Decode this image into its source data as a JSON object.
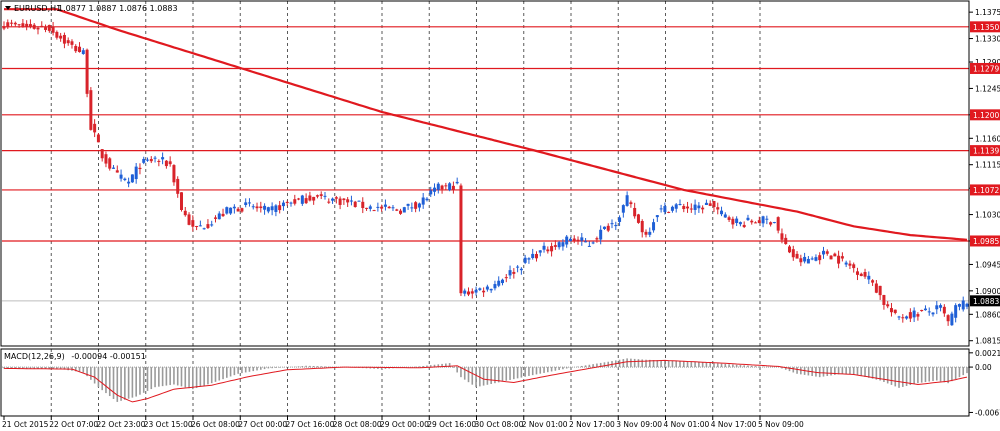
{
  "header": {
    "symbol_label": "EURUSD,H1",
    "ohlc_text": "1.0877 1.0887 1.0876 1.0883"
  },
  "colors": {
    "bull": "#1f5fd6",
    "bear": "#d8232a",
    "ma": "#e0191f",
    "level_line": "#e0191f",
    "macd_hist": "#9a9a9a",
    "macd_signal": "#e0191f",
    "grid": "#5a5a5a",
    "current_price_box": "#000000"
  },
  "chart_data": [
    {
      "type": "candlestick",
      "title": "EURUSD,H1",
      "ohlc_label": "1.0877 1.0887 1.0876 1.0883",
      "y_axis_ticks": [
        "1.1375",
        "1.1330",
        "1.1290",
        "1.1245",
        "1.1200",
        "1.1160",
        "1.1115",
        "1.1075",
        "1.1030",
        "1.0985",
        "1.0945",
        "1.0900",
        "1.0860",
        "1.0815"
      ],
      "ylim": [
        1.0806,
        1.1394
      ],
      "x_axis_labels": [
        "21 Oct 2015",
        "22 Oct 07:00",
        "22 Oct 23:00",
        "23 Oct 15:00",
        "26 Oct 08:00",
        "27 Oct 00:00",
        "27 Oct 16:00",
        "28 Oct 08:00",
        "29 Oct 00:00",
        "29 Oct 16:00",
        "30 Oct 08:00",
        "2 Nov 01:00",
        "2 Nov 17:00",
        "3 Nov 09:00",
        "4 Nov 01:00",
        "4 Nov 17:00",
        "5 Nov 09:00"
      ],
      "horizontal_levels": [
        {
          "price": 1.135,
          "label": "1.1350"
        },
        {
          "price": 1.1279,
          "label": "1.1279"
        },
        {
          "price": 1.12,
          "label": "1.1200"
        },
        {
          "price": 1.1139,
          "label": "1.1139"
        },
        {
          "price": 1.1072,
          "label": "1.1072"
        },
        {
          "price": 1.0985,
          "label": "1.0985"
        }
      ],
      "current_price": {
        "price": 1.0883,
        "label": "1.0883"
      },
      "moving_average_anchors": [
        {
          "bar": 0,
          "price": 1.138
        },
        {
          "bar": 14,
          "price": 1.138
        },
        {
          "bar": 30,
          "price": 1.1345
        },
        {
          "bar": 60,
          "price": 1.1285
        },
        {
          "bar": 100,
          "price": 1.1205
        },
        {
          "bar": 140,
          "price": 1.114
        },
        {
          "bar": 180,
          "price": 1.1072
        },
        {
          "bar": 210,
          "price": 1.1035
        },
        {
          "bar": 225,
          "price": 1.101
        },
        {
          "bar": 240,
          "price": 1.0995
        },
        {
          "bar": 255,
          "price": 1.0987
        }
      ],
      "price_anchors": [
        {
          "bar": 0,
          "price": 1.1355
        },
        {
          "bar": 5,
          "price": 1.135
        },
        {
          "bar": 12,
          "price": 1.1348
        },
        {
          "bar": 17,
          "price": 1.132
        },
        {
          "bar": 21,
          "price": 1.1305
        },
        {
          "bar": 23,
          "price": 1.118
        },
        {
          "bar": 26,
          "price": 1.113
        },
        {
          "bar": 30,
          "price": 1.1095
        },
        {
          "bar": 33,
          "price": 1.1085
        },
        {
          "bar": 36,
          "price": 1.1115
        },
        {
          "bar": 40,
          "price": 1.1125
        },
        {
          "bar": 44,
          "price": 1.1115
        },
        {
          "bar": 47,
          "price": 1.104
        },
        {
          "bar": 50,
          "price": 1.1005
        },
        {
          "bar": 54,
          "price": 1.1015
        },
        {
          "bar": 60,
          "price": 1.104
        },
        {
          "bar": 65,
          "price": 1.1045
        },
        {
          "bar": 70,
          "price": 1.1035
        },
        {
          "bar": 75,
          "price": 1.105
        },
        {
          "bar": 82,
          "price": 1.106
        },
        {
          "bar": 88,
          "price": 1.1055
        },
        {
          "bar": 95,
          "price": 1.1045
        },
        {
          "bar": 100,
          "price": 1.104
        },
        {
          "bar": 105,
          "price": 1.1038
        },
        {
          "bar": 110,
          "price": 1.105
        },
        {
          "bar": 115,
          "price": 1.1075
        },
        {
          "bar": 120,
          "price": 1.108
        },
        {
          "bar": 121,
          "price": 1.0895
        },
        {
          "bar": 128,
          "price": 1.0905
        },
        {
          "bar": 135,
          "price": 1.0935
        },
        {
          "bar": 140,
          "price": 1.096
        },
        {
          "bar": 145,
          "price": 1.0975
        },
        {
          "bar": 150,
          "price": 1.099
        },
        {
          "bar": 155,
          "price": 1.098
        },
        {
          "bar": 158,
          "price": 1.1
        },
        {
          "bar": 162,
          "price": 1.102
        },
        {
          "bar": 165,
          "price": 1.1055
        },
        {
          "bar": 168,
          "price": 1.1015
        },
        {
          "bar": 170,
          "price": 1.0995
        },
        {
          "bar": 173,
          "price": 1.1035
        },
        {
          "bar": 178,
          "price": 1.1045
        },
        {
          "bar": 183,
          "price": 1.104
        },
        {
          "bar": 187,
          "price": 1.1048
        },
        {
          "bar": 190,
          "price": 1.103
        },
        {
          "bar": 195,
          "price": 1.1015
        },
        {
          "bar": 200,
          "price": 1.102
        },
        {
          "bar": 204,
          "price": 1.102
        },
        {
          "bar": 206,
          "price": 1.0985
        },
        {
          "bar": 210,
          "price": 1.095
        },
        {
          "bar": 214,
          "price": 1.0955
        },
        {
          "bar": 218,
          "price": 1.0965
        },
        {
          "bar": 222,
          "price": 1.095
        },
        {
          "bar": 226,
          "price": 1.0935
        },
        {
          "bar": 230,
          "price": 1.0915
        },
        {
          "bar": 233,
          "price": 1.088
        },
        {
          "bar": 236,
          "price": 1.0855
        },
        {
          "bar": 240,
          "price": 1.086
        },
        {
          "bar": 245,
          "price": 1.0865
        },
        {
          "bar": 248,
          "price": 1.087
        },
        {
          "bar": 250,
          "price": 1.0845
        },
        {
          "bar": 252,
          "price": 1.087
        },
        {
          "bar": 255,
          "price": 1.0883
        }
      ],
      "bar_count": 256
    },
    {
      "type": "bar",
      "title": "MACD(12,26,9) -0.00094 -0.00151",
      "label_name": "MACD(12,26,9)",
      "label_values": "-0.00094 -0.00151",
      "y_axis_ticks": [
        "0.00213",
        "0.00",
        "-0.00677"
      ],
      "ylim": [
        -0.0073,
        0.0027
      ],
      "histogram_anchors": [
        {
          "bar": 0,
          "value": -0.0002
        },
        {
          "bar": 15,
          "value": -0.0003
        },
        {
          "bar": 21,
          "value": -0.0008
        },
        {
          "bar": 25,
          "value": -0.003
        },
        {
          "bar": 30,
          "value": -0.0052
        },
        {
          "bar": 35,
          "value": -0.0044
        },
        {
          "bar": 40,
          "value": -0.003
        },
        {
          "bar": 45,
          "value": -0.0026
        },
        {
          "bar": 50,
          "value": -0.0033
        },
        {
          "bar": 55,
          "value": -0.0024
        },
        {
          "bar": 62,
          "value": -0.001
        },
        {
          "bar": 70,
          "value": -0.0002
        },
        {
          "bar": 80,
          "value": 0.0002
        },
        {
          "bar": 90,
          "value": 0.0
        },
        {
          "bar": 100,
          "value": -0.0003
        },
        {
          "bar": 110,
          "value": 0.0001
        },
        {
          "bar": 118,
          "value": 0.0006
        },
        {
          "bar": 121,
          "value": -0.0015
        },
        {
          "bar": 125,
          "value": -0.003
        },
        {
          "bar": 130,
          "value": -0.0024
        },
        {
          "bar": 140,
          "value": -0.0012
        },
        {
          "bar": 150,
          "value": -0.0001
        },
        {
          "bar": 160,
          "value": 0.0008
        },
        {
          "bar": 165,
          "value": 0.0013
        },
        {
          "bar": 170,
          "value": 0.0011
        },
        {
          "bar": 180,
          "value": 0.0009
        },
        {
          "bar": 190,
          "value": 0.0005
        },
        {
          "bar": 200,
          "value": 0.0001
        },
        {
          "bar": 205,
          "value": 0.0
        },
        {
          "bar": 210,
          "value": -0.001
        },
        {
          "bar": 216,
          "value": -0.0015
        },
        {
          "bar": 222,
          "value": -0.001
        },
        {
          "bar": 226,
          "value": -0.0012
        },
        {
          "bar": 232,
          "value": -0.002
        },
        {
          "bar": 237,
          "value": -0.0031
        },
        {
          "bar": 242,
          "value": -0.0024
        },
        {
          "bar": 247,
          "value": -0.002
        },
        {
          "bar": 250,
          "value": -0.0024
        },
        {
          "bar": 255,
          "value": -0.0009
        }
      ],
      "signal_anchors": [
        {
          "bar": 0,
          "value": -0.0002
        },
        {
          "bar": 18,
          "value": -0.0003
        },
        {
          "bar": 24,
          "value": -0.0015
        },
        {
          "bar": 30,
          "value": -0.0042
        },
        {
          "bar": 34,
          "value": -0.0052
        },
        {
          "bar": 38,
          "value": -0.0047
        },
        {
          "bar": 45,
          "value": -0.0033
        },
        {
          "bar": 55,
          "value": -0.0027
        },
        {
          "bar": 65,
          "value": -0.0014
        },
        {
          "bar": 75,
          "value": -0.0004
        },
        {
          "bar": 90,
          "value": 0.0
        },
        {
          "bar": 110,
          "value": -0.0001
        },
        {
          "bar": 120,
          "value": 0.0002
        },
        {
          "bar": 127,
          "value": -0.0018
        },
        {
          "bar": 135,
          "value": -0.0023
        },
        {
          "bar": 145,
          "value": -0.0012
        },
        {
          "bar": 155,
          "value": -0.0002
        },
        {
          "bar": 165,
          "value": 0.0008
        },
        {
          "bar": 175,
          "value": 0.001
        },
        {
          "bar": 190,
          "value": 0.0006
        },
        {
          "bar": 205,
          "value": 0.0001
        },
        {
          "bar": 215,
          "value": -0.0008
        },
        {
          "bar": 225,
          "value": -0.0011
        },
        {
          "bar": 235,
          "value": -0.002
        },
        {
          "bar": 242,
          "value": -0.0026
        },
        {
          "bar": 250,
          "value": -0.0021
        },
        {
          "bar": 255,
          "value": -0.0015
        }
      ]
    }
  ]
}
